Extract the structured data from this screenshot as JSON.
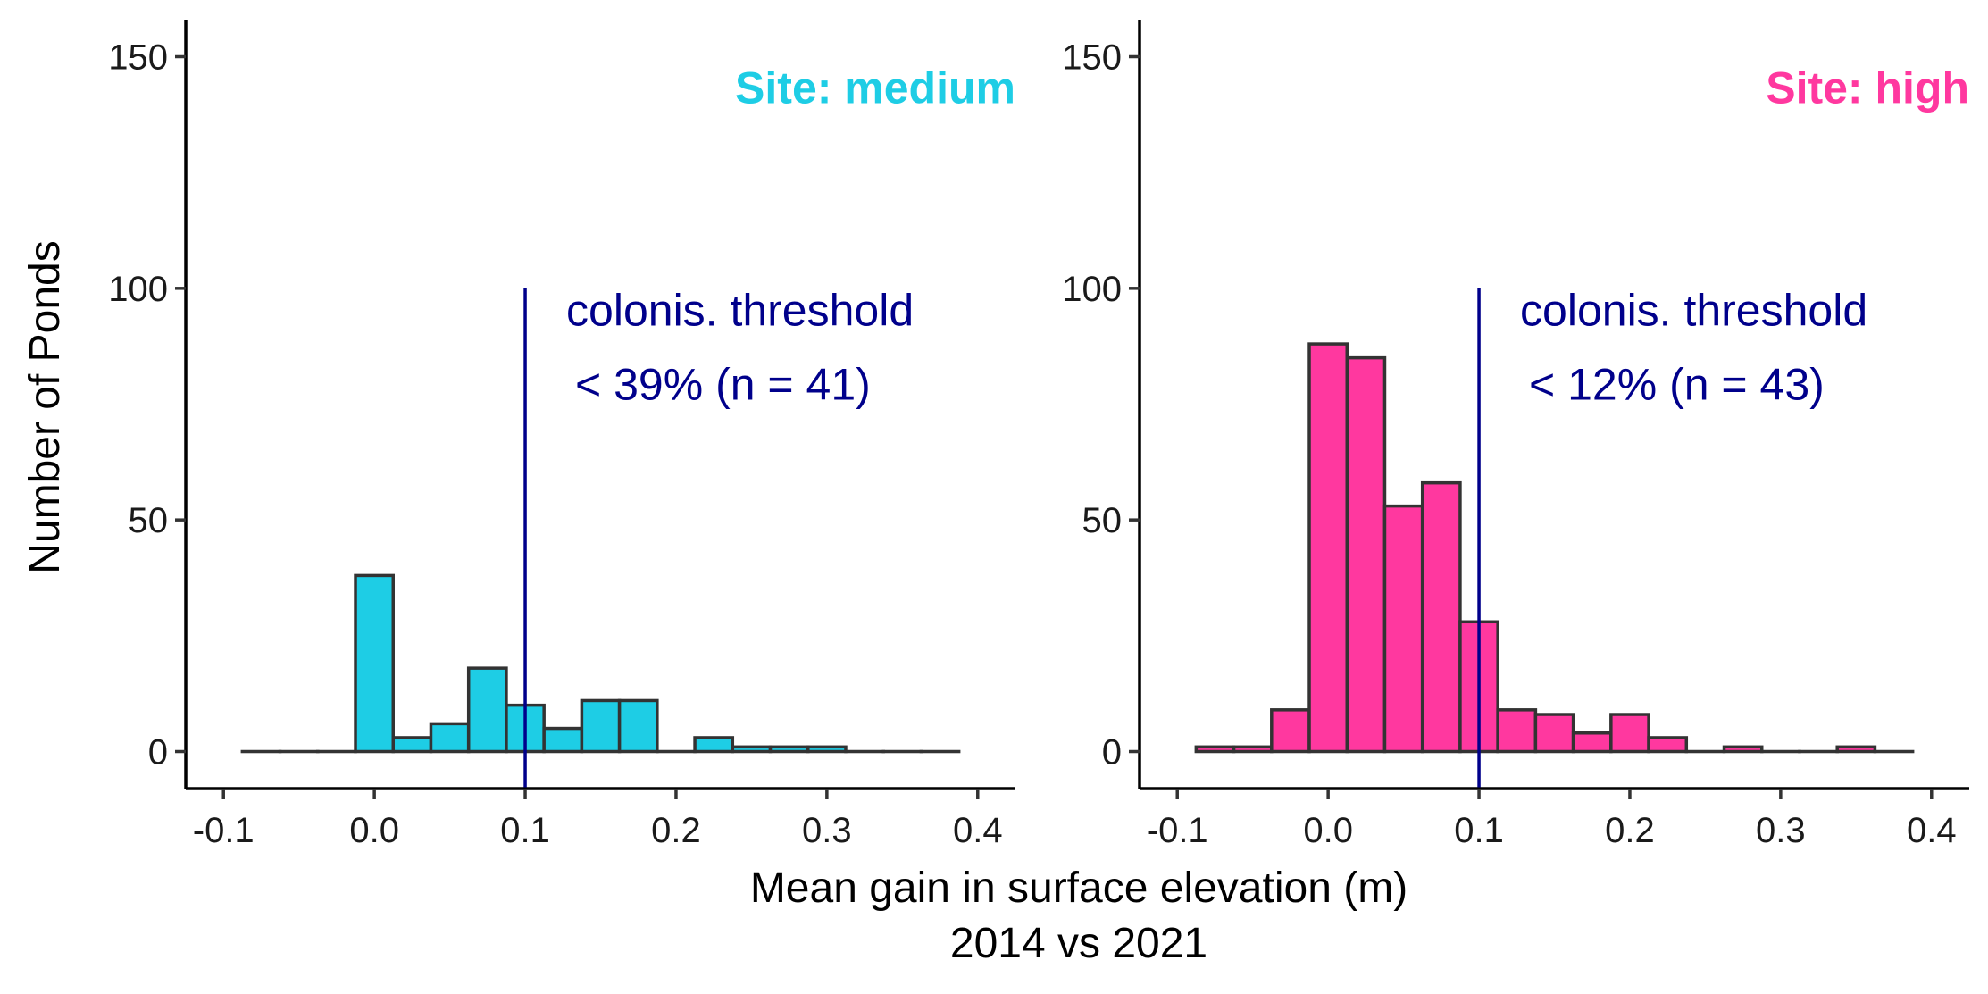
{
  "chart_data": {
    "type": "bar",
    "ylabel": "Number of Ponds",
    "xlabel_line1": "Mean gain in surface elevation (m)",
    "xlabel_line2": "2014 vs 2021",
    "xlim": [
      -0.125,
      0.425
    ],
    "ylim": [
      -8,
      158
    ],
    "x_ticks": [
      -0.1,
      0.0,
      0.1,
      0.2,
      0.3,
      0.4
    ],
    "x_tick_labels": [
      "-0.1",
      "0.0",
      "0.1",
      "0.2",
      "0.3",
      "0.4"
    ],
    "y_ticks": [
      0,
      50,
      100,
      150
    ],
    "y_tick_labels": [
      "0",
      "50",
      "100",
      "150"
    ],
    "bin_width": 0.025,
    "bin_starts": [
      -0.0875,
      -0.0625,
      -0.0375,
      -0.0125,
      0.0125,
      0.0375,
      0.0625,
      0.0875,
      0.1125,
      0.1375,
      0.1625,
      0.1875,
      0.2125,
      0.2375,
      0.2625,
      0.2875,
      0.3125,
      0.3375,
      0.3625
    ],
    "threshold_x": 0.1,
    "threshold_line_top": 100,
    "threshold_color": "#00008b",
    "panels": [
      {
        "site_label": "Site: medium",
        "color": "#1ecde5",
        "counts": [
          0,
          0,
          0,
          38,
          3,
          6,
          18,
          10,
          5,
          11,
          11,
          0,
          3,
          1,
          1,
          1,
          0,
          0,
          0
        ],
        "annotation_line1": "colonis. threshold",
        "annotation_line2": "< 39% (n = 41)"
      },
      {
        "site_label": "Site: high",
        "color": "#ff389f",
        "counts": [
          1,
          1,
          9,
          88,
          85,
          53,
          58,
          28,
          9,
          8,
          4,
          8,
          3,
          0,
          1,
          0,
          0,
          1,
          0
        ],
        "annotation_line1": "colonis. threshold",
        "annotation_line2": "< 12% (n = 43)"
      }
    ]
  }
}
